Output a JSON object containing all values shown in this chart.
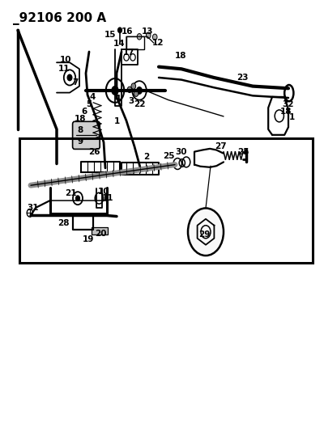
{
  "title": "_92106 200 A",
  "bg_color": "#ffffff",
  "line_color": "#000000",
  "title_fontsize": 11,
  "label_fontsize": 7.5
}
